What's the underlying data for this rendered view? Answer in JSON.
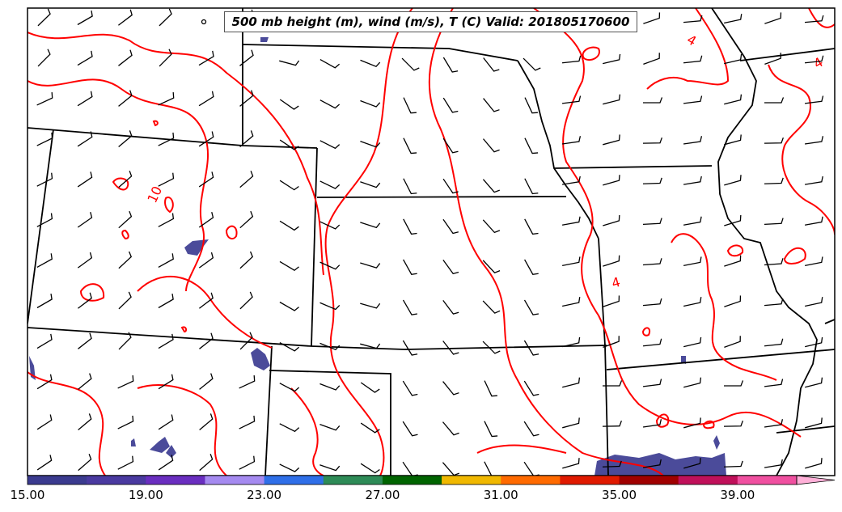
{
  "title": "500 mb height (m), wind (m/s), T (C) Valid: 201805170600",
  "contour_labels": [
    "4",
    "4",
    "4",
    "10"
  ],
  "colorbar": {
    "ticks": [
      "15.00",
      "19.00",
      "23.00",
      "27.00",
      "31.00",
      "35.00",
      "39.00"
    ],
    "colors": [
      "#3b3b8f",
      "#4a3aa0",
      "#6a2ec0",
      "#a58af0",
      "#2f6fe8",
      "#2e8b57",
      "#006400",
      "#f0b800",
      "#ff6a00",
      "#e01a00",
      "#a00000",
      "#c0105a",
      "#f050a0",
      "#ffb0d8"
    ],
    "extend": "max"
  },
  "styles": {
    "contour_color": "#ff0000",
    "border_color": "#000000",
    "shade_color": "#4b4b9a"
  }
}
